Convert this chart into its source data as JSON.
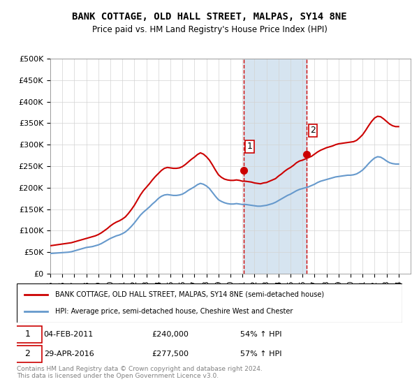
{
  "title": "BANK COTTAGE, OLD HALL STREET, MALPAS, SY14 8NE",
  "subtitle": "Price paid vs. HM Land Registry's House Price Index (HPI)",
  "ylabel_ticks": [
    "£0",
    "£50K",
    "£100K",
    "£150K",
    "£200K",
    "£250K",
    "£300K",
    "£350K",
    "£400K",
    "£450K",
    "£500K"
  ],
  "ylim": [
    0,
    500000
  ],
  "xlim_start": 1995.0,
  "xlim_end": 2025.0,
  "marker1_x": 2011.09,
  "marker1_y": 240000,
  "marker2_x": 2016.33,
  "marker2_y": 277500,
  "legend_line1": "BANK COTTAGE, OLD HALL STREET, MALPAS, SY14 8NE (semi-detached house)",
  "legend_line2": "HPI: Average price, semi-detached house, Cheshire West and Chester",
  "annotation1": "1    04-FEB-2011         £240,000         54% ↑ HPI",
  "annotation2": "2    29-APR-2016         £277,500         57% ↑ HPI",
  "footnote": "Contains HM Land Registry data © Crown copyright and database right 2024.\nThis data is licensed under the Open Government Licence v3.0.",
  "line_color_red": "#cc0000",
  "line_color_blue": "#6699cc",
  "shaded_color": "#d6e4f0",
  "marker_color": "#cc0000",
  "marker_border": "#cc0000",
  "dashed_line_color": "#cc0000",
  "hpi_data_x": [
    1995.0,
    1995.25,
    1995.5,
    1995.75,
    1996.0,
    1996.25,
    1996.5,
    1996.75,
    1997.0,
    1997.25,
    1997.5,
    1997.75,
    1998.0,
    1998.25,
    1998.5,
    1998.75,
    1999.0,
    1999.25,
    1999.5,
    1999.75,
    2000.0,
    2000.25,
    2000.5,
    2000.75,
    2001.0,
    2001.25,
    2001.5,
    2001.75,
    2002.0,
    2002.25,
    2002.5,
    2002.75,
    2003.0,
    2003.25,
    2003.5,
    2003.75,
    2004.0,
    2004.25,
    2004.5,
    2004.75,
    2005.0,
    2005.25,
    2005.5,
    2005.75,
    2006.0,
    2006.25,
    2006.5,
    2006.75,
    2007.0,
    2007.25,
    2007.5,
    2007.75,
    2008.0,
    2008.25,
    2008.5,
    2008.75,
    2009.0,
    2009.25,
    2009.5,
    2009.75,
    2010.0,
    2010.25,
    2010.5,
    2010.75,
    2011.0,
    2011.25,
    2011.5,
    2011.75,
    2012.0,
    2012.25,
    2012.5,
    2012.75,
    2013.0,
    2013.25,
    2013.5,
    2013.75,
    2014.0,
    2014.25,
    2014.5,
    2014.75,
    2015.0,
    2015.25,
    2015.5,
    2015.75,
    2016.0,
    2016.25,
    2016.5,
    2016.75,
    2017.0,
    2017.25,
    2017.5,
    2017.75,
    2018.0,
    2018.25,
    2018.5,
    2018.75,
    2019.0,
    2019.25,
    2019.5,
    2019.75,
    2020.0,
    2020.25,
    2020.5,
    2020.75,
    2021.0,
    2021.25,
    2021.5,
    2021.75,
    2022.0,
    2022.25,
    2022.5,
    2022.75,
    2023.0,
    2023.25,
    2023.5,
    2023.75,
    2024.0
  ],
  "hpi_data_y": [
    47000,
    47500,
    48000,
    48500,
    49000,
    49500,
    50000,
    51000,
    53000,
    55000,
    57000,
    59000,
    61000,
    62000,
    63000,
    65000,
    67000,
    70000,
    74000,
    78000,
    82000,
    85000,
    88000,
    90000,
    93000,
    97000,
    103000,
    110000,
    118000,
    127000,
    136000,
    143000,
    149000,
    155000,
    162000,
    168000,
    175000,
    180000,
    183000,
    184000,
    183000,
    182000,
    182000,
    183000,
    185000,
    189000,
    194000,
    198000,
    202000,
    207000,
    210000,
    208000,
    204000,
    198000,
    189000,
    180000,
    172000,
    168000,
    165000,
    163000,
    162000,
    162000,
    163000,
    162000,
    161000,
    161000,
    160000,
    159000,
    158000,
    157000,
    157000,
    158000,
    159000,
    161000,
    163000,
    166000,
    170000,
    174000,
    178000,
    182000,
    185000,
    189000,
    193000,
    196000,
    198000,
    200000,
    202000,
    205000,
    208000,
    212000,
    215000,
    217000,
    219000,
    221000,
    223000,
    225000,
    226000,
    227000,
    228000,
    229000,
    229000,
    230000,
    232000,
    236000,
    241000,
    248000,
    256000,
    263000,
    269000,
    272000,
    271000,
    267000,
    262000,
    258000,
    256000,
    255000,
    255000
  ],
  "price_data_x": [
    1995.0,
    1995.25,
    1995.5,
    1995.75,
    1996.0,
    1996.25,
    1996.5,
    1996.75,
    1997.0,
    1997.25,
    1997.5,
    1997.75,
    1998.0,
    1998.25,
    1998.5,
    1998.75,
    1999.0,
    1999.25,
    1999.5,
    1999.75,
    2000.0,
    2000.25,
    2000.5,
    2000.75,
    2001.0,
    2001.25,
    2001.5,
    2001.75,
    2002.0,
    2002.25,
    2002.5,
    2002.75,
    2003.0,
    2003.25,
    2003.5,
    2003.75,
    2004.0,
    2004.25,
    2004.5,
    2004.75,
    2005.0,
    2005.25,
    2005.5,
    2005.75,
    2006.0,
    2006.25,
    2006.5,
    2006.75,
    2007.0,
    2007.25,
    2007.5,
    2007.75,
    2008.0,
    2008.25,
    2008.5,
    2008.75,
    2009.0,
    2009.25,
    2009.5,
    2009.75,
    2010.0,
    2010.25,
    2010.5,
    2010.75,
    2011.0,
    2011.25,
    2011.5,
    2011.75,
    2012.0,
    2012.25,
    2012.5,
    2012.75,
    2013.0,
    2013.25,
    2013.5,
    2013.75,
    2014.0,
    2014.25,
    2014.5,
    2014.75,
    2015.0,
    2015.25,
    2015.5,
    2015.75,
    2016.0,
    2016.25,
    2016.5,
    2016.75,
    2017.0,
    2017.25,
    2017.5,
    2017.75,
    2018.0,
    2018.25,
    2018.5,
    2018.75,
    2019.0,
    2019.25,
    2019.5,
    2019.75,
    2020.0,
    2020.25,
    2020.5,
    2020.75,
    2021.0,
    2021.25,
    2021.5,
    2021.75,
    2022.0,
    2022.25,
    2022.5,
    2022.75,
    2023.0,
    2023.25,
    2023.5,
    2023.75,
    2024.0
  ],
  "price_data_y": [
    65000,
    66000,
    67000,
    68000,
    69000,
    70000,
    71000,
    72000,
    74000,
    76000,
    78000,
    80000,
    82000,
    84000,
    86000,
    88000,
    91000,
    95000,
    100000,
    105000,
    111000,
    116000,
    120000,
    123000,
    127000,
    132000,
    140000,
    149000,
    159000,
    171000,
    183000,
    193000,
    201000,
    209000,
    218000,
    226000,
    233000,
    240000,
    245000,
    247000,
    246000,
    245000,
    245000,
    246000,
    249000,
    254000,
    260000,
    266000,
    271000,
    277000,
    281000,
    278000,
    272000,
    264000,
    253000,
    241000,
    230000,
    224000,
    220000,
    218000,
    217000,
    217000,
    218000,
    217000,
    215000,
    215000,
    214000,
    213000,
    211000,
    210000,
    209000,
    211000,
    212000,
    215000,
    218000,
    221000,
    227000,
    232000,
    238000,
    243000,
    247000,
    252000,
    258000,
    262000,
    264000,
    267000,
    270000,
    273000,
    278000,
    283000,
    287000,
    290000,
    293000,
    295000,
    297000,
    300000,
    302000,
    303000,
    304000,
    305000,
    306000,
    307000,
    310000,
    316000,
    323000,
    333000,
    344000,
    354000,
    362000,
    366000,
    365000,
    360000,
    354000,
    348000,
    344000,
    342000,
    342000
  ]
}
